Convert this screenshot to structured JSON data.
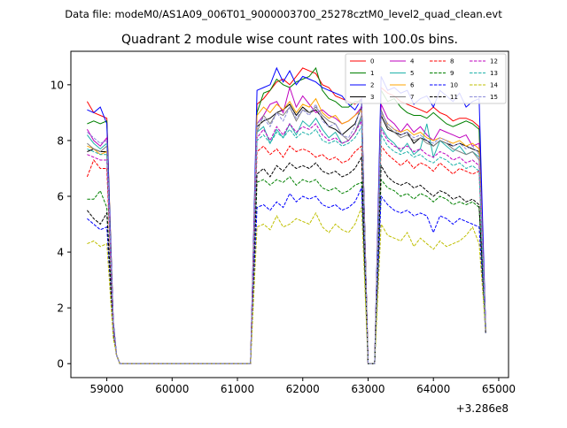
{
  "figure": {
    "suptitle": "Data file: modeM0/AS1A09_006T01_9000003700_25278cztM0_level2_quad_clean.evt",
    "title": "Quadrant 2 module wise count rates with 100.0s bins."
  },
  "chart_data": {
    "type": "line",
    "title": "Quadrant 2 module wise count rates with 100.0s bins.",
    "xlabel": "",
    "ylabel": "",
    "x_offset_label": "+3.286e8",
    "xlim": [
      58450,
      65150
    ],
    "ylim": [
      -0.5,
      11.2
    ],
    "xticks": [
      59000,
      60000,
      61000,
      62000,
      63000,
      64000,
      65000
    ],
    "xtick_labels": [
      "59000",
      "60000",
      "61000",
      "62000",
      "63000",
      "64000",
      "65000"
    ],
    "yticks": [
      0,
      2,
      4,
      6,
      8,
      10
    ],
    "ytick_labels": [
      "0",
      "2",
      "4",
      "6",
      "8",
      "10"
    ],
    "grid": false,
    "legend_position": "top-right",
    "legend_columns": 4,
    "x": [
      58700,
      58800,
      58900,
      59000,
      59100,
      59150,
      59200,
      59300,
      59400,
      59500,
      59600,
      59700,
      59800,
      59900,
      60000,
      60100,
      60200,
      60300,
      60400,
      60500,
      60600,
      60700,
      60800,
      60900,
      61000,
      61100,
      61200,
      61300,
      61400,
      61500,
      61600,
      61700,
      61800,
      61900,
      62000,
      62100,
      62200,
      62300,
      62400,
      62500,
      62600,
      62700,
      62800,
      62900,
      63000,
      63100,
      63200,
      63300,
      63400,
      63500,
      63600,
      63700,
      63800,
      63900,
      64000,
      64100,
      64200,
      64300,
      64400,
      64500,
      64600,
      64700,
      64800
    ],
    "series": [
      {
        "name": "0",
        "color": "#ff0000",
        "dash": "solid",
        "values": [
          9.4,
          9.0,
          8.9,
          8.8,
          1.5,
          0.3,
          0.0,
          0.0,
          0.0,
          0.0,
          0.0,
          0.0,
          0.0,
          0.0,
          0.0,
          0.0,
          0.0,
          0.0,
          0.0,
          0.0,
          0.0,
          0.0,
          0.0,
          0.0,
          0.0,
          0.0,
          0.0,
          9.3,
          9.5,
          9.8,
          10.1,
          10.2,
          10.0,
          10.3,
          10.6,
          10.5,
          10.4,
          10.0,
          9.9,
          9.6,
          9.5,
          9.4,
          9.3,
          9.5,
          0.0,
          0.0,
          9.9,
          9.7,
          9.6,
          9.4,
          9.3,
          9.2,
          9.1,
          9.0,
          9.2,
          9.0,
          8.9,
          8.7,
          8.8,
          8.8,
          8.7,
          8.5,
          1.3
        ]
      },
      {
        "name": "1",
        "color": "#008000",
        "dash": "solid",
        "values": [
          8.6,
          8.7,
          8.6,
          8.7,
          1.5,
          0.3,
          0.0,
          0.0,
          0.0,
          0.0,
          0.0,
          0.0,
          0.0,
          0.0,
          0.0,
          0.0,
          0.0,
          0.0,
          0.0,
          0.0,
          0.0,
          0.0,
          0.0,
          0.0,
          0.0,
          0.0,
          0.0,
          9.0,
          9.7,
          9.8,
          10.2,
          10.0,
          9.9,
          10.1,
          10.2,
          10.3,
          10.6,
          9.8,
          9.5,
          9.4,
          9.2,
          9.2,
          9.4,
          9.4,
          0.0,
          0.0,
          9.8,
          9.4,
          9.5,
          9.2,
          9.0,
          8.9,
          8.9,
          8.8,
          9.0,
          8.8,
          8.6,
          8.5,
          8.6,
          8.7,
          8.6,
          8.4,
          1.3
        ]
      },
      {
        "name": "2",
        "color": "#0000ff",
        "dash": "solid",
        "values": [
          9.1,
          9.0,
          9.2,
          8.6,
          1.5,
          0.3,
          0.0,
          0.0,
          0.0,
          0.0,
          0.0,
          0.0,
          0.0,
          0.0,
          0.0,
          0.0,
          0.0,
          0.0,
          0.0,
          0.0,
          0.0,
          0.0,
          0.0,
          0.0,
          0.0,
          0.0,
          0.0,
          9.8,
          9.9,
          10.0,
          10.6,
          10.1,
          10.5,
          10.0,
          10.3,
          10.2,
          10.1,
          9.9,
          9.8,
          9.7,
          9.6,
          9.3,
          9.1,
          9.5,
          0.0,
          0.0,
          10.3,
          9.8,
          9.9,
          9.7,
          9.8,
          9.3,
          9.5,
          9.6,
          9.2,
          9.8,
          9.6,
          9.4,
          9.7,
          9.2,
          9.4,
          9.5,
          1.3
        ]
      },
      {
        "name": "3",
        "color": "#000000",
        "dash": "solid",
        "values": [
          7.6,
          7.7,
          7.6,
          7.6,
          1.3,
          0.3,
          0.0,
          0.0,
          0.0,
          0.0,
          0.0,
          0.0,
          0.0,
          0.0,
          0.0,
          0.0,
          0.0,
          0.0,
          0.0,
          0.0,
          0.0,
          0.0,
          0.0,
          0.0,
          0.0,
          0.0,
          0.0,
          8.5,
          8.7,
          8.8,
          9.0,
          9.1,
          9.3,
          8.9,
          9.2,
          9.0,
          9.1,
          8.8,
          8.5,
          8.4,
          8.2,
          8.4,
          8.6,
          9.2,
          0.0,
          0.0,
          8.9,
          8.4,
          8.3,
          8.2,
          8.3,
          7.9,
          8.1,
          8.0,
          7.8,
          8.0,
          7.9,
          7.8,
          7.9,
          7.8,
          7.7,
          7.6,
          1.2
        ]
      },
      {
        "name": "4",
        "color": "#bf00bf",
        "dash": "solid",
        "values": [
          8.4,
          8.0,
          7.8,
          8.1,
          1.4,
          0.3,
          0.0,
          0.0,
          0.0,
          0.0,
          0.0,
          0.0,
          0.0,
          0.0,
          0.0,
          0.0,
          0.0,
          0.0,
          0.0,
          0.0,
          0.0,
          0.0,
          0.0,
          0.0,
          0.0,
          0.0,
          0.0,
          8.6,
          8.9,
          9.3,
          9.4,
          9.0,
          9.9,
          9.2,
          9.6,
          9.3,
          9.0,
          9.1,
          8.9,
          8.8,
          8.6,
          8.7,
          8.9,
          9.2,
          0.0,
          0.0,
          9.3,
          8.8,
          8.6,
          8.3,
          8.6,
          8.3,
          8.5,
          8.2,
          8.0,
          8.4,
          8.3,
          8.2,
          8.1,
          8.2,
          7.8,
          7.9,
          1.3
        ]
      },
      {
        "name": "5",
        "color": "#20b2aa",
        "dash": "solid",
        "values": [
          8.2,
          7.9,
          7.7,
          7.9,
          1.4,
          0.3,
          0.0,
          0.0,
          0.0,
          0.0,
          0.0,
          0.0,
          0.0,
          0.0,
          0.0,
          0.0,
          0.0,
          0.0,
          0.0,
          0.0,
          0.0,
          0.0,
          0.0,
          0.0,
          0.0,
          0.0,
          0.0,
          8.3,
          8.5,
          7.9,
          8.4,
          8.1,
          8.6,
          8.2,
          8.7,
          8.5,
          8.8,
          8.4,
          8.1,
          8.3,
          7.9,
          8.0,
          8.3,
          8.8,
          0.0,
          0.0,
          8.5,
          8.1,
          7.9,
          7.6,
          7.9,
          7.5,
          7.7,
          8.6,
          7.4,
          8.0,
          7.8,
          7.6,
          7.8,
          7.5,
          7.6,
          7.4,
          1.3
        ]
      },
      {
        "name": "6",
        "color": "#ffa500",
        "dash": "solid",
        "values": [
          7.8,
          7.7,
          7.5,
          7.6,
          1.3,
          0.3,
          0.0,
          0.0,
          0.0,
          0.0,
          0.0,
          0.0,
          0.0,
          0.0,
          0.0,
          0.0,
          0.0,
          0.0,
          0.0,
          0.0,
          0.0,
          0.0,
          0.0,
          0.0,
          0.0,
          0.0,
          0.0,
          8.9,
          9.2,
          9.0,
          9.3,
          9.1,
          9.4,
          9.0,
          9.3,
          9.2,
          9.5,
          9.0,
          8.8,
          8.9,
          8.6,
          8.7,
          8.9,
          9.1,
          0.0,
          0.0,
          9.0,
          8.6,
          8.4,
          8.3,
          8.4,
          8.2,
          8.3,
          8.1,
          8.0,
          8.1,
          8.0,
          7.9,
          8.0,
          7.8,
          7.9,
          7.7,
          1.2
        ]
      },
      {
        "name": "7",
        "color": "#808080",
        "dash": "solid",
        "values": [
          7.9,
          7.7,
          7.6,
          7.8,
          1.3,
          0.3,
          0.0,
          0.0,
          0.0,
          0.0,
          0.0,
          0.0,
          0.0,
          0.0,
          0.0,
          0.0,
          0.0,
          0.0,
          0.0,
          0.0,
          0.0,
          0.0,
          0.0,
          0.0,
          0.0,
          0.0,
          0.0,
          8.3,
          8.9,
          8.6,
          9.0,
          8.9,
          9.2,
          8.7,
          9.1,
          9.0,
          9.2,
          8.9,
          8.7,
          8.6,
          8.2,
          8.0,
          8.3,
          8.9,
          0.0,
          0.0,
          9.1,
          8.5,
          8.3,
          8.1,
          8.2,
          8.0,
          8.1,
          7.9,
          7.8,
          8.0,
          7.9,
          7.7,
          7.6,
          7.5,
          7.6,
          7.3,
          1.2
        ]
      },
      {
        "name": "8",
        "color": "#ff0000",
        "dash": "dashed",
        "values": [
          6.7,
          7.3,
          7.0,
          7.0,
          1.2,
          0.3,
          0.0,
          0.0,
          0.0,
          0.0,
          0.0,
          0.0,
          0.0,
          0.0,
          0.0,
          0.0,
          0.0,
          0.0,
          0.0,
          0.0,
          0.0,
          0.0,
          0.0,
          0.0,
          0.0,
          0.0,
          0.0,
          7.6,
          7.8,
          7.5,
          7.7,
          7.4,
          7.8,
          7.6,
          7.7,
          7.6,
          7.4,
          7.5,
          7.3,
          7.4,
          7.2,
          7.3,
          7.6,
          7.8,
          0.0,
          0.0,
          7.8,
          7.5,
          7.3,
          7.1,
          7.3,
          7.0,
          7.2,
          7.1,
          6.9,
          7.2,
          7.0,
          6.8,
          7.0,
          6.9,
          6.8,
          6.9,
          1.2
        ]
      },
      {
        "name": "9",
        "color": "#008000",
        "dash": "dashed",
        "values": [
          5.9,
          5.9,
          6.2,
          5.6,
          1.1,
          0.3,
          0.0,
          0.0,
          0.0,
          0.0,
          0.0,
          0.0,
          0.0,
          0.0,
          0.0,
          0.0,
          0.0,
          0.0,
          0.0,
          0.0,
          0.0,
          0.0,
          0.0,
          0.0,
          0.0,
          0.0,
          0.0,
          6.5,
          6.6,
          6.4,
          6.6,
          6.5,
          6.7,
          6.4,
          6.6,
          6.5,
          6.6,
          6.3,
          6.2,
          6.3,
          6.1,
          6.2,
          6.4,
          6.5,
          0.0,
          0.0,
          6.6,
          6.3,
          6.2,
          6.0,
          6.1,
          5.9,
          6.1,
          6.0,
          5.8,
          6.0,
          5.9,
          5.7,
          5.8,
          5.7,
          5.8,
          5.6,
          1.1
        ]
      },
      {
        "name": "10",
        "color": "#0000ff",
        "dash": "dashed",
        "values": [
          5.2,
          5.0,
          4.8,
          4.9,
          1.0,
          0.3,
          0.0,
          0.0,
          0.0,
          0.0,
          0.0,
          0.0,
          0.0,
          0.0,
          0.0,
          0.0,
          0.0,
          0.0,
          0.0,
          0.0,
          0.0,
          0.0,
          0.0,
          0.0,
          0.0,
          0.0,
          0.0,
          5.6,
          5.7,
          5.5,
          5.8,
          5.6,
          6.1,
          5.8,
          6.0,
          5.9,
          6.0,
          5.7,
          5.6,
          5.7,
          5.5,
          5.6,
          5.8,
          6.3,
          0.0,
          0.0,
          6.0,
          5.7,
          5.5,
          5.4,
          5.5,
          5.3,
          5.4,
          5.3,
          4.7,
          5.3,
          5.2,
          5.0,
          5.2,
          5.1,
          5.0,
          4.9,
          1.1
        ]
      },
      {
        "name": "11",
        "color": "#000000",
        "dash": "dashed",
        "values": [
          5.5,
          5.2,
          5.0,
          5.4,
          1.1,
          0.3,
          0.0,
          0.0,
          0.0,
          0.0,
          0.0,
          0.0,
          0.0,
          0.0,
          0.0,
          0.0,
          0.0,
          0.0,
          0.0,
          0.0,
          0.0,
          0.0,
          0.0,
          0.0,
          0.0,
          0.0,
          0.0,
          6.8,
          7.0,
          6.7,
          7.1,
          6.9,
          7.2,
          7.0,
          7.1,
          7.0,
          7.2,
          6.9,
          6.8,
          6.9,
          6.7,
          6.8,
          7.0,
          7.4,
          0.0,
          0.0,
          7.1,
          6.7,
          6.5,
          6.4,
          6.5,
          6.3,
          6.4,
          6.2,
          6.0,
          6.2,
          6.1,
          5.9,
          6.0,
          5.8,
          5.9,
          5.7,
          1.1
        ]
      },
      {
        "name": "12",
        "color": "#bf00bf",
        "dash": "dashed",
        "values": [
          7.5,
          7.4,
          7.3,
          7.3,
          1.3,
          0.3,
          0.0,
          0.0,
          0.0,
          0.0,
          0.0,
          0.0,
          0.0,
          0.0,
          0.0,
          0.0,
          0.0,
          0.0,
          0.0,
          0.0,
          0.0,
          0.0,
          0.0,
          0.0,
          0.0,
          0.0,
          0.0,
          8.1,
          8.4,
          8.0,
          8.5,
          8.2,
          8.6,
          8.3,
          8.5,
          8.4,
          8.6,
          8.2,
          8.0,
          8.1,
          7.9,
          8.0,
          8.3,
          8.7,
          0.0,
          0.0,
          8.4,
          8.0,
          7.8,
          7.7,
          7.8,
          7.6,
          7.7,
          7.5,
          7.4,
          7.6,
          7.5,
          7.3,
          7.4,
          7.2,
          7.3,
          7.1,
          1.2
        ]
      },
      {
        "name": "13",
        "color": "#20b2aa",
        "dash": "dashed",
        "values": [
          7.7,
          7.6,
          7.5,
          7.5,
          1.3,
          0.3,
          0.0,
          0.0,
          0.0,
          0.0,
          0.0,
          0.0,
          0.0,
          0.0,
          0.0,
          0.0,
          0.0,
          0.0,
          0.0,
          0.0,
          0.0,
          0.0,
          0.0,
          0.0,
          0.0,
          0.0,
          0.0,
          8.0,
          8.2,
          7.9,
          8.3,
          8.1,
          8.4,
          8.1,
          8.3,
          8.2,
          8.4,
          8.0,
          7.9,
          8.0,
          7.8,
          7.9,
          8.1,
          8.5,
          0.0,
          0.0,
          8.2,
          7.8,
          7.6,
          7.5,
          7.6,
          7.4,
          7.5,
          7.3,
          7.2,
          7.4,
          7.3,
          7.1,
          7.2,
          7.0,
          7.1,
          6.9,
          1.2
        ]
      },
      {
        "name": "14",
        "color": "#bfbf00",
        "dash": "dashed",
        "values": [
          4.3,
          4.4,
          4.2,
          4.3,
          0.9,
          0.3,
          0.0,
          0.0,
          0.0,
          0.0,
          0.0,
          0.0,
          0.0,
          0.0,
          0.0,
          0.0,
          0.0,
          0.0,
          0.0,
          0.0,
          0.0,
          0.0,
          0.0,
          0.0,
          0.0,
          0.0,
          0.0,
          4.9,
          5.0,
          4.8,
          5.3,
          4.9,
          5.0,
          5.2,
          5.1,
          5.0,
          5.4,
          4.9,
          4.7,
          5.0,
          4.8,
          4.7,
          5.0,
          5.6,
          0.0,
          0.0,
          5.0,
          4.6,
          4.5,
          4.4,
          4.7,
          4.2,
          4.5,
          4.3,
          4.1,
          4.4,
          4.2,
          4.3,
          4.4,
          4.6,
          4.9,
          4.3,
          1.2
        ]
      },
      {
        "name": "15",
        "color": "#8c8cd9",
        "dash": "dashed",
        "values": [
          8.3,
          8.1,
          7.9,
          8.0,
          1.4,
          0.3,
          0.0,
          0.0,
          0.0,
          0.0,
          0.0,
          0.0,
          0.0,
          0.0,
          0.0,
          0.0,
          0.0,
          0.0,
          0.0,
          0.0,
          0.0,
          0.0,
          0.0,
          0.0,
          0.0,
          0.0,
          0.0,
          8.6,
          8.8,
          8.5,
          9.0,
          8.7,
          9.2,
          8.8,
          9.1,
          8.9,
          9.3,
          8.7,
          8.5,
          8.6,
          8.2,
          8.1,
          8.5,
          9.3,
          0.0,
          0.0,
          9.0,
          8.6,
          8.4,
          8.2,
          8.3,
          8.1,
          8.2,
          8.0,
          7.9,
          8.1,
          8.0,
          7.8,
          7.9,
          7.7,
          7.8,
          7.5,
          1.2
        ]
      }
    ]
  }
}
